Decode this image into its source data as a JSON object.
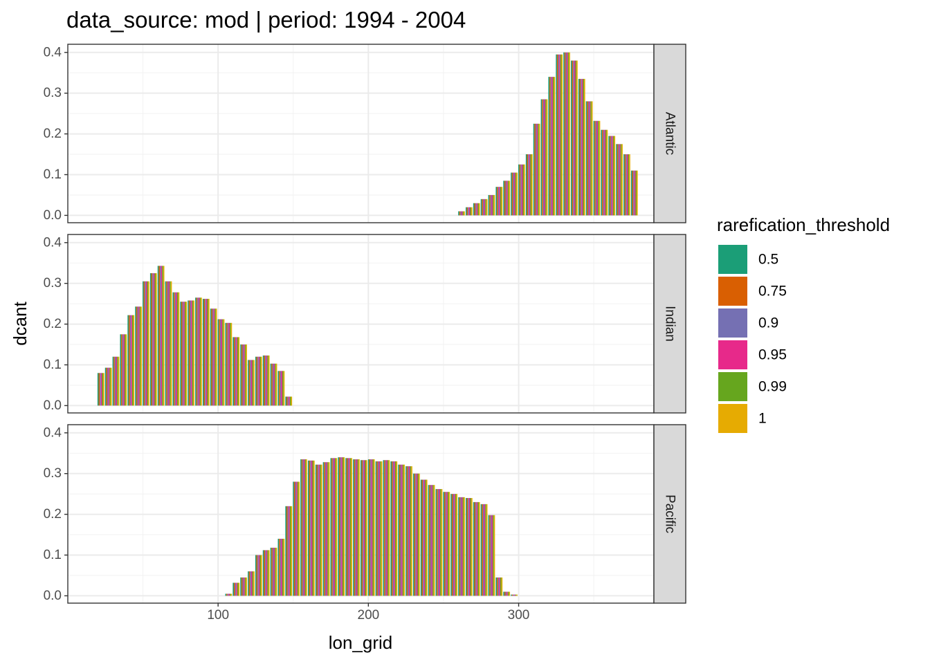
{
  "title": "data_source: mod | period: 1994 - 2004",
  "chart_data": {
    "type": "bar",
    "title": "data_source: mod | period: 1994 - 2004",
    "xlabel": "lon_grid",
    "ylabel": "dcant",
    "xlim": [
      0,
      390
    ],
    "ylim": [
      -0.018,
      0.42
    ],
    "x_ticks": [
      "100",
      "200",
      "300"
    ],
    "y_ticks": [
      "0.0",
      "0.1",
      "0.2",
      "0.3",
      "0.4"
    ],
    "grid": true,
    "legend": {
      "title": "rarefication_threshold",
      "position": "right",
      "entries": [
        {
          "label": "0.5",
          "color": "#1B9E77"
        },
        {
          "label": "0.75",
          "color": "#D95F02"
        },
        {
          "label": "0.9",
          "color": "#7570B3"
        },
        {
          "label": "0.95",
          "color": "#E7298A"
        },
        {
          "label": "0.99",
          "color": "#66A61E"
        },
        {
          "label": "1",
          "color": "#E6AB02"
        }
      ]
    },
    "panels": [
      {
        "name": "Atlantic",
        "x": [
          262,
          267,
          272,
          277,
          282,
          287,
          292,
          297,
          302,
          307,
          312,
          317,
          322,
          327,
          332,
          337,
          342,
          347,
          352,
          357,
          362,
          367,
          372,
          377
        ],
        "values": [
          0.01,
          0.02,
          0.03,
          0.04,
          0.05,
          0.07,
          0.085,
          0.105,
          0.125,
          0.15,
          0.225,
          0.285,
          0.34,
          0.395,
          0.4,
          0.38,
          0.335,
          0.28,
          0.232,
          0.21,
          0.195,
          0.175,
          0.15,
          0.11
        ]
      },
      {
        "name": "Indian",
        "x": [
          22,
          27,
          32,
          37,
          42,
          47,
          52,
          57,
          62,
          67,
          72,
          77,
          82,
          87,
          92,
          97,
          102,
          107,
          112,
          117,
          122,
          127,
          132,
          137,
          142,
          147
        ],
        "values": [
          0.08,
          0.093,
          0.12,
          0.175,
          0.222,
          0.243,
          0.305,
          0.325,
          0.343,
          0.305,
          0.278,
          0.255,
          0.258,
          0.265,
          0.262,
          0.238,
          0.212,
          0.203,
          0.168,
          0.15,
          0.112,
          0.12,
          0.123,
          0.103,
          0.085,
          0.022
        ]
      },
      {
        "name": "Pacific",
        "x": [
          107,
          112,
          117,
          122,
          127,
          132,
          137,
          142,
          147,
          152,
          157,
          162,
          167,
          172,
          177,
          182,
          187,
          192,
          197,
          202,
          207,
          212,
          217,
          222,
          227,
          232,
          237,
          242,
          247,
          252,
          257,
          262,
          267,
          272,
          277,
          282,
          287,
          292,
          297
        ],
        "values": [
          0.005,
          0.032,
          0.045,
          0.06,
          0.1,
          0.112,
          0.118,
          0.14,
          0.22,
          0.28,
          0.335,
          0.332,
          0.322,
          0.328,
          0.338,
          0.34,
          0.338,
          0.335,
          0.333,
          0.335,
          0.33,
          0.333,
          0.33,
          0.322,
          0.318,
          0.3,
          0.285,
          0.272,
          0.262,
          0.255,
          0.25,
          0.242,
          0.24,
          0.23,
          0.225,
          0.198,
          0.045,
          0.01,
          0.003
        ]
      }
    ]
  }
}
